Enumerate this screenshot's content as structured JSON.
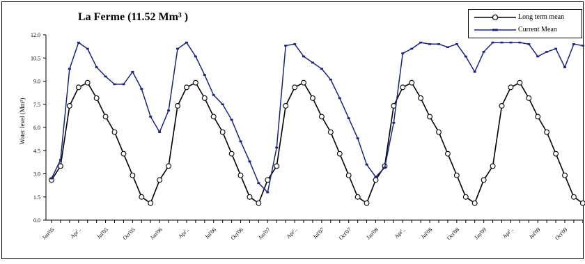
{
  "chart_data": {
    "type": "line",
    "title": "La Ferme (11.52 Mm³ )",
    "ylabel": "Water level (Mm³)",
    "xlabel": "",
    "ylim": [
      0,
      12
    ],
    "yticks": [
      "0.0",
      "1.5",
      "3.0",
      "4.5",
      "6.0",
      "7.5",
      "9.0",
      "10.5",
      "12.0"
    ],
    "categories": [
      "Jan'05",
      "Feb'05",
      "Mar'05",
      "Apr'05",
      "May'05",
      "Jun'05",
      "Jul'05",
      "Aug'05",
      "Sep'05",
      "Oct'05",
      "Nov'05",
      "Dec'05",
      "Jan'06",
      "Feb'06",
      "Mar'06",
      "Apr'06",
      "May'06",
      "Jun'06",
      "Jul'06",
      "Aug'06",
      "Sep'06",
      "Oct'06",
      "Nov'06",
      "Dec'06",
      "Jan'07",
      "Feb'07",
      "Mar'07",
      "Apr'07",
      "May'07",
      "Jun'07",
      "Jul'07",
      "Aug'07",
      "Sep'07",
      "Oct'07",
      "Nov'07",
      "Dec'07",
      "Jan'08",
      "Feb'08",
      "Mar'08",
      "Apr'08",
      "May'08",
      "Jun'08",
      "Jul'08",
      "Aug'08",
      "Sep'08",
      "Oct'08",
      "Nov'08",
      "Dec'08",
      "Jan'09",
      "Feb'09",
      "Mar'09",
      "Apr'09",
      "May'09",
      "Jun'09",
      "Jul'09",
      "Aug'09",
      "Sep'09",
      "Oct'09",
      "Nov'09",
      "Dec'09"
    ],
    "xtick_labels": [
      "Jan'05",
      "Apr'..",
      "Jul'05",
      "Oct'05",
      "Jan'06",
      "Apr'..",
      "Jul'06",
      "Oct'06",
      "Jan'07",
      "Apr'..",
      "Jul'07",
      "Oct'07",
      "Jan'08",
      "Apr'..",
      "Jul'08",
      "Oct'08",
      "Jan'09",
      "Apr'..",
      "Jul'09",
      "Oct'09"
    ],
    "legend_position": "top-right",
    "grid": false,
    "series": [
      {
        "name": "Long term mean",
        "color": "#000000",
        "marker": "open-circle",
        "values": [
          2.6,
          3.5,
          7.4,
          8.6,
          8.9,
          7.9,
          6.7,
          5.7,
          4.3,
          2.9,
          1.5,
          1.1,
          2.6,
          3.5,
          7.4,
          8.6,
          8.9,
          7.9,
          6.7,
          5.7,
          4.3,
          2.9,
          1.5,
          1.1,
          2.6,
          3.5,
          7.4,
          8.6,
          8.9,
          7.9,
          6.7,
          5.7,
          4.3,
          2.9,
          1.5,
          1.1,
          2.6,
          3.5,
          7.4,
          8.6,
          8.9,
          7.9,
          6.7,
          5.7,
          4.3,
          2.9,
          1.5,
          1.1,
          2.6,
          3.5,
          7.4,
          8.6,
          8.9,
          7.9,
          6.7,
          5.7,
          4.3,
          2.9,
          1.5,
          1.1
        ]
      },
      {
        "name": "Current Mean",
        "color": "#1a237e",
        "marker": "dash",
        "values": [
          2.7,
          3.9,
          9.8,
          11.5,
          11.1,
          9.9,
          9.3,
          8.8,
          8.8,
          9.6,
          8.5,
          6.7,
          5.7,
          7.1,
          11.1,
          11.5,
          10.6,
          9.4,
          8.1,
          7.5,
          6.5,
          5.1,
          3.8,
          2.4,
          1.8,
          4.7,
          11.3,
          11.4,
          10.6,
          10.2,
          9.8,
          9.1,
          7.9,
          6.6,
          5.3,
          3.6,
          2.8,
          3.4,
          6.3,
          10.8,
          11.1,
          11.5,
          11.4,
          11.4,
          11.2,
          11.4,
          10.6,
          9.6,
          10.9,
          11.5,
          11.5,
          11.5,
          11.5,
          11.4,
          10.6,
          10.9,
          11.1,
          9.9,
          11.4,
          11.3
        ]
      }
    ]
  }
}
